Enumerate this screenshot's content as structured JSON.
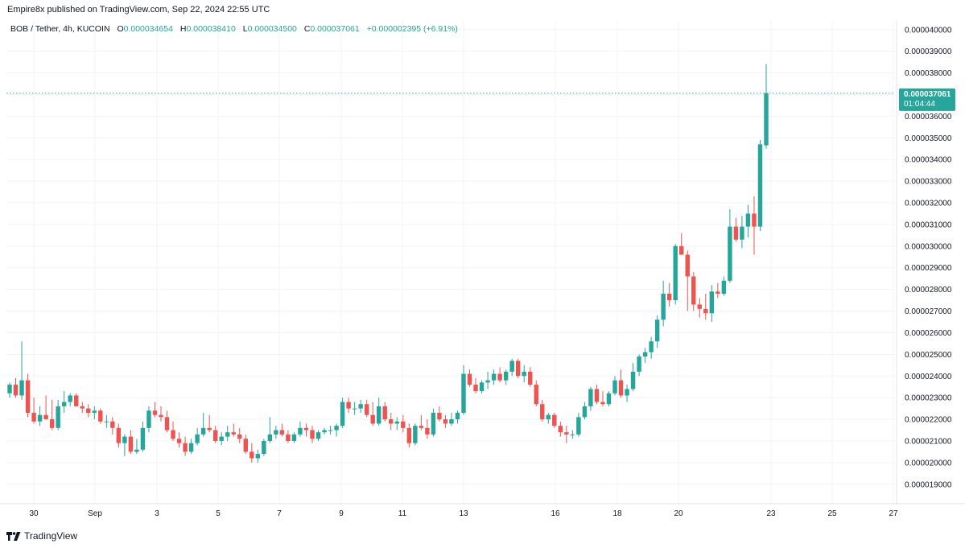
{
  "header": {
    "published_line": "Empire8x published on TradingView.com, Sep 22, 2024 22:55 UTC"
  },
  "legend": {
    "symbol": "BOB / Tether, 4h, KUCOIN",
    "o_label": "O",
    "o_value": "0.000034654",
    "h_label": "H",
    "h_value": "0.000038410",
    "l_label": "L",
    "l_value": "0.000034500",
    "c_label": "C",
    "c_value": "0.000037061",
    "change": "+0.000002395 (+6.91%)"
  },
  "price_tag": {
    "price": "0.000037061",
    "countdown": "01:04:44"
  },
  "footer": {
    "brand": "TradingView"
  },
  "colors": {
    "up": "#26a69a",
    "down": "#ef5350",
    "grid": "#f0f3fa",
    "text": "#131722",
    "legend_value": "#26a69a"
  },
  "chart_data": {
    "type": "candlestick",
    "y_unit_scale": 1e-06,
    "ylim": [
      1.81e-05,
      4.04e-05
    ],
    "y_ticks": [
      "0.000040000",
      "0.000039000",
      "0.000038000",
      "0.000037000",
      "0.000036000",
      "0.000035000",
      "0.000034000",
      "0.000033000",
      "0.000032000",
      "0.000031000",
      "0.000030000",
      "0.000029000",
      "0.000028000",
      "0.000027000",
      "0.000026000",
      "0.000025000",
      "0.000024000",
      "0.000023000",
      "0.000022000",
      "0.000021000",
      "0.000020000",
      "0.000019000"
    ],
    "x_ticks": [
      "30",
      "Sep",
      "3",
      "5",
      "7",
      "9",
      "11",
      "13",
      "16",
      "18",
      "20",
      "23",
      "25",
      "27"
    ],
    "ohlc_scaled_1e6": [
      [
        23.2,
        23.7,
        23.0,
        23.6
      ],
      [
        23.6,
        23.9,
        23.0,
        23.1
      ],
      [
        23.1,
        25.6,
        22.9,
        23.8
      ],
      [
        23.8,
        24.1,
        22.1,
        22.3
      ],
      [
        22.3,
        23.0,
        21.8,
        21.9
      ],
      [
        21.9,
        22.6,
        21.7,
        22.2
      ],
      [
        22.2,
        23.1,
        22.0,
        22.0
      ],
      [
        22.0,
        22.9,
        21.5,
        21.6
      ],
      [
        21.6,
        22.9,
        21.5,
        22.6
      ],
      [
        22.6,
        23.3,
        22.3,
        22.8
      ],
      [
        22.8,
        23.2,
        22.6,
        23.1
      ],
      [
        23.1,
        23.2,
        22.6,
        22.6
      ],
      [
        22.6,
        22.8,
        22.3,
        22.5
      ],
      [
        22.5,
        22.7,
        22.1,
        22.3
      ],
      [
        22.3,
        22.6,
        22.0,
        22.4
      ],
      [
        22.4,
        22.5,
        21.8,
        21.9
      ],
      [
        21.9,
        22.2,
        21.6,
        21.9
      ],
      [
        21.9,
        22.1,
        21.3,
        21.6
      ],
      [
        21.6,
        21.8,
        20.7,
        20.9
      ],
      [
        20.9,
        21.3,
        20.3,
        21.2
      ],
      [
        21.2,
        21.5,
        20.4,
        20.5
      ],
      [
        20.5,
        21.1,
        20.4,
        20.6
      ],
      [
        20.6,
        21.9,
        20.5,
        21.6
      ],
      [
        21.6,
        22.6,
        21.4,
        22.4
      ],
      [
        22.4,
        22.8,
        22.1,
        22.2
      ],
      [
        22.2,
        22.6,
        21.9,
        22.1
      ],
      [
        22.1,
        22.4,
        21.4,
        21.5
      ],
      [
        21.5,
        21.9,
        21.0,
        21.1
      ],
      [
        21.1,
        21.4,
        20.7,
        20.9
      ],
      [
        20.9,
        21.2,
        20.3,
        20.5
      ],
      [
        20.5,
        21.1,
        20.4,
        20.9
      ],
      [
        20.9,
        21.6,
        20.8,
        21.3
      ],
      [
        21.3,
        22.3,
        21.2,
        21.6
      ],
      [
        21.6,
        22.2,
        21.4,
        21.5
      ],
      [
        21.5,
        21.7,
        20.9,
        21.0
      ],
      [
        21.0,
        21.4,
        20.8,
        21.2
      ],
      [
        21.2,
        21.7,
        21.0,
        21.4
      ],
      [
        21.4,
        21.8,
        21.2,
        21.3
      ],
      [
        21.3,
        21.6,
        20.9,
        21.1
      ],
      [
        21.1,
        21.3,
        20.4,
        20.5
      ],
      [
        20.5,
        20.9,
        20.0,
        20.2
      ],
      [
        20.2,
        20.6,
        20.0,
        20.4
      ],
      [
        20.4,
        21.1,
        20.3,
        21.0
      ],
      [
        21.0,
        22.1,
        20.9,
        21.3
      ],
      [
        21.3,
        21.7,
        21.1,
        21.5
      ],
      [
        21.5,
        21.8,
        21.2,
        21.3
      ],
      [
        21.3,
        21.5,
        20.9,
        21.0
      ],
      [
        21.0,
        21.4,
        20.9,
        21.3
      ],
      [
        21.3,
        21.9,
        21.2,
        21.6
      ],
      [
        21.6,
        21.8,
        21.2,
        21.5
      ],
      [
        21.5,
        21.7,
        20.9,
        21.1
      ],
      [
        21.1,
        21.5,
        21.0,
        21.4
      ],
      [
        21.4,
        21.6,
        21.3,
        21.5
      ],
      [
        21.5,
        21.7,
        21.3,
        21.5
      ],
      [
        21.5,
        21.8,
        21.2,
        21.7
      ],
      [
        21.7,
        23.0,
        21.6,
        22.8
      ],
      [
        22.8,
        23.0,
        22.3,
        22.5
      ],
      [
        22.5,
        22.8,
        22.2,
        22.5
      ],
      [
        22.5,
        22.9,
        22.3,
        22.7
      ],
      [
        22.7,
        22.9,
        22.1,
        22.2
      ],
      [
        22.2,
        22.8,
        21.7,
        21.8
      ],
      [
        21.8,
        23.0,
        21.7,
        22.6
      ],
      [
        22.6,
        22.8,
        21.9,
        22.0
      ],
      [
        22.0,
        22.3,
        21.5,
        21.8
      ],
      [
        21.8,
        22.1,
        21.5,
        21.9
      ],
      [
        21.9,
        22.2,
        21.4,
        21.6
      ],
      [
        21.6,
        21.8,
        20.7,
        20.9
      ],
      [
        20.9,
        21.8,
        20.8,
        21.7
      ],
      [
        21.7,
        22.2,
        21.5,
        21.6
      ],
      [
        21.6,
        22.0,
        21.1,
        21.3
      ],
      [
        21.3,
        22.5,
        21.2,
        22.3
      ],
      [
        22.3,
        22.6,
        21.9,
        22.0
      ],
      [
        22.0,
        22.2,
        21.6,
        21.8
      ],
      [
        21.8,
        22.3,
        21.7,
        22.0
      ],
      [
        22.0,
        22.4,
        21.8,
        22.3
      ],
      [
        22.3,
        24.5,
        22.2,
        24.1
      ],
      [
        24.1,
        24.3,
        23.5,
        23.6
      ],
      [
        23.6,
        23.9,
        23.2,
        23.3
      ],
      [
        23.3,
        23.8,
        23.2,
        23.7
      ],
      [
        23.7,
        24.2,
        23.4,
        23.8
      ],
      [
        23.8,
        24.3,
        23.6,
        24.1
      ],
      [
        24.1,
        24.4,
        23.7,
        23.8
      ],
      [
        23.8,
        24.3,
        23.6,
        24.2
      ],
      [
        24.2,
        24.8,
        24.0,
        24.7
      ],
      [
        24.7,
        24.8,
        23.9,
        24.0
      ],
      [
        24.0,
        24.5,
        23.7,
        24.2
      ],
      [
        24.2,
        24.4,
        23.5,
        23.6
      ],
      [
        23.6,
        23.8,
        22.6,
        22.7
      ],
      [
        22.7,
        22.9,
        21.9,
        22.0
      ],
      [
        22.0,
        22.3,
        21.8,
        22.2
      ],
      [
        22.2,
        22.3,
        21.6,
        21.7
      ],
      [
        21.7,
        21.9,
        21.2,
        21.4
      ],
      [
        21.4,
        21.7,
        20.9,
        21.3
      ],
      [
        21.3,
        21.5,
        21.1,
        21.3
      ],
      [
        21.3,
        22.3,
        21.2,
        22.1
      ],
      [
        22.1,
        22.8,
        22.0,
        22.6
      ],
      [
        22.6,
        23.5,
        22.4,
        23.4
      ],
      [
        23.4,
        23.6,
        22.7,
        22.8
      ],
      [
        22.8,
        23.3,
        22.6,
        22.7
      ],
      [
        22.7,
        23.3,
        22.6,
        23.2
      ],
      [
        23.2,
        24.0,
        23.1,
        23.8
      ],
      [
        23.8,
        24.3,
        23.0,
        23.1
      ],
      [
        23.1,
        23.6,
        22.8,
        23.4
      ],
      [
        23.4,
        24.6,
        23.3,
        24.2
      ],
      [
        24.2,
        25.0,
        24.0,
        24.9
      ],
      [
        24.9,
        25.3,
        24.6,
        25.1
      ],
      [
        25.1,
        25.8,
        24.8,
        25.6
      ],
      [
        25.6,
        26.8,
        25.3,
        26.6
      ],
      [
        26.6,
        28.4,
        26.3,
        27.8
      ],
      [
        27.8,
        28.3,
        27.2,
        27.5
      ],
      [
        27.5,
        30.1,
        27.3,
        30.0
      ],
      [
        30.0,
        30.6,
        29.6,
        29.6
      ],
      [
        29.6,
        29.8,
        27.0,
        28.6
      ],
      [
        28.6,
        28.8,
        27.0,
        27.3
      ],
      [
        27.3,
        27.6,
        26.7,
        27.1
      ],
      [
        27.1,
        27.8,
        26.6,
        26.9
      ],
      [
        26.9,
        28.2,
        26.5,
        27.9
      ],
      [
        27.9,
        28.3,
        27.6,
        27.8
      ],
      [
        27.8,
        28.6,
        27.7,
        28.4
      ],
      [
        28.4,
        31.7,
        28.3,
        30.9
      ],
      [
        30.9,
        31.3,
        30.2,
        30.3
      ],
      [
        30.3,
        31.4,
        29.9,
        30.9
      ],
      [
        30.9,
        31.9,
        30.4,
        31.5
      ],
      [
        31.5,
        32.3,
        29.6,
        30.9
      ],
      [
        30.9,
        34.9,
        30.7,
        34.7
      ],
      [
        34.654,
        38.41,
        34.5,
        37.061
      ]
    ]
  }
}
